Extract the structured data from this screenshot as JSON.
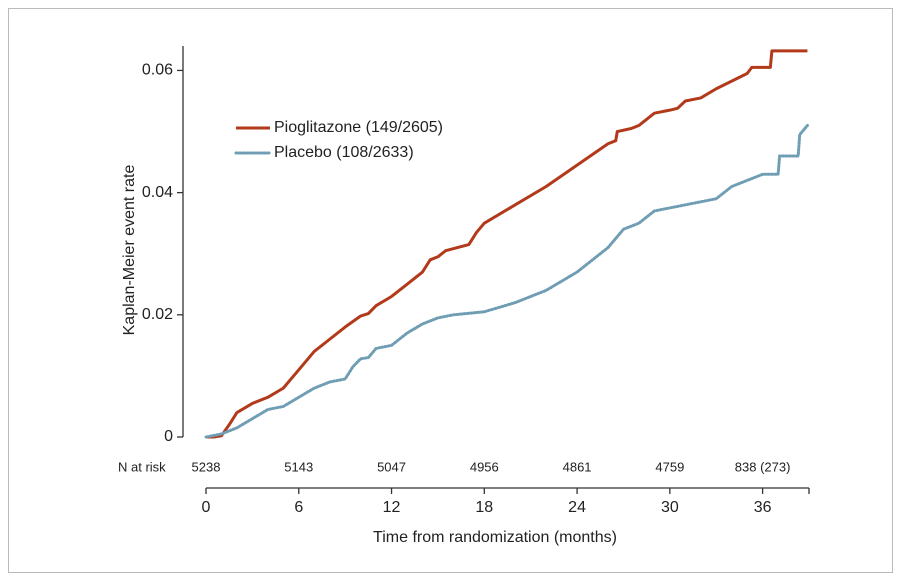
{
  "chart_data": {
    "type": "line",
    "xlabel": "Time from randomization (months)",
    "ylabel": "Kaplan-Meier event rate",
    "xlim": [
      0,
      39
    ],
    "xticks": [
      0,
      6,
      12,
      18,
      24,
      30,
      36
    ],
    "ylim": [
      0,
      0.064
    ],
    "yticks": [
      0,
      0.02,
      0.04,
      0.06
    ],
    "series": [
      {
        "name": "Pioglitazone (149/2605)",
        "color": "#b23a1b",
        "style": "solid",
        "x": [
          0,
          0.5,
          1,
          1.5,
          2,
          3,
          4,
          5,
          6,
          7,
          8,
          9,
          10,
          10.5,
          11,
          12,
          13,
          14,
          14.5,
          15,
          15.5,
          17,
          17.5,
          18,
          20,
          22,
          24,
          26,
          26.5,
          26.6,
          27.5,
          28,
          29,
          30,
          30.5,
          31,
          32,
          33,
          35,
          35.3,
          36.5,
          36.6,
          38.9
        ],
        "values": [
          0,
          0,
          0.0002,
          0.002,
          0.004,
          0.0055,
          0.0065,
          0.008,
          0.011,
          0.014,
          0.016,
          0.018,
          0.0198,
          0.0202,
          0.0215,
          0.023,
          0.025,
          0.027,
          0.029,
          0.0295,
          0.0305,
          0.0315,
          0.0335,
          0.035,
          0.038,
          0.041,
          0.0445,
          0.048,
          0.0485,
          0.05,
          0.0505,
          0.051,
          0.053,
          0.0535,
          0.0538,
          0.055,
          0.0555,
          0.057,
          0.0595,
          0.0605,
          0.0605,
          0.0632,
          0.0632
        ]
      },
      {
        "name": "Placebo (108/2633)",
        "color": "#6f9db3",
        "style": "dotted",
        "x": [
          0,
          1,
          2,
          3,
          4,
          5,
          6,
          7,
          8,
          9,
          9.5,
          10,
          10.5,
          11,
          12,
          13,
          14,
          15,
          16,
          18,
          20,
          22,
          24,
          25,
          26,
          27,
          28,
          29,
          30,
          31,
          32,
          33,
          34,
          35,
          36,
          37,
          37.1,
          38.3,
          38.4,
          38.9
        ],
        "values": [
          0,
          0.0005,
          0.0015,
          0.003,
          0.0045,
          0.005,
          0.0065,
          0.008,
          0.009,
          0.0095,
          0.0115,
          0.0128,
          0.013,
          0.0145,
          0.015,
          0.017,
          0.0185,
          0.0195,
          0.02,
          0.0205,
          0.022,
          0.024,
          0.027,
          0.029,
          0.031,
          0.034,
          0.035,
          0.037,
          0.0375,
          0.038,
          0.0385,
          0.039,
          0.041,
          0.042,
          0.043,
          0.043,
          0.046,
          0.046,
          0.0495,
          0.051
        ]
      }
    ],
    "n_at_risk": {
      "label": "N at risk",
      "values": [
        "5238",
        "5143",
        "5047",
        "4956",
        "4861",
        "4759",
        "838 (273)"
      ]
    }
  }
}
